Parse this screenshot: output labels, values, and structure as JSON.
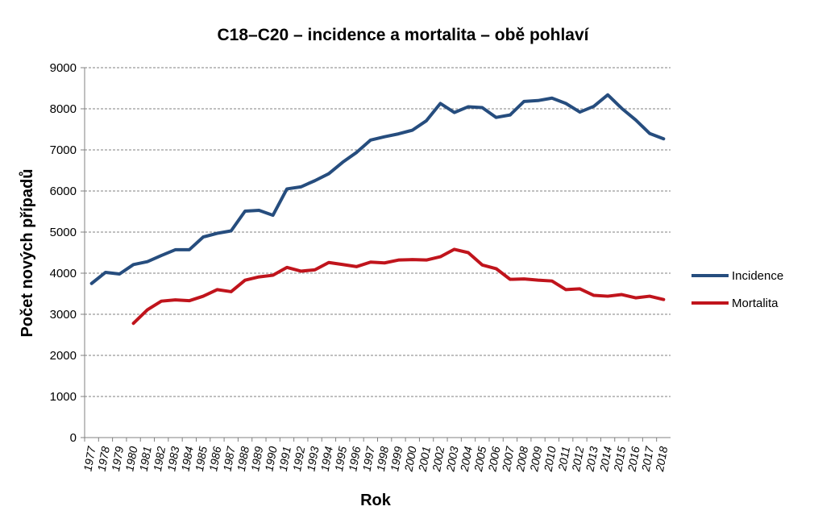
{
  "chart_data": {
    "type": "line",
    "title": "C18–C20 – incidence a mortalita – obě pohlaví",
    "xlabel": "Rok",
    "ylabel": "Počet nových případů",
    "ylim": [
      0,
      9000
    ],
    "yticks": [
      0,
      1000,
      2000,
      3000,
      4000,
      5000,
      6000,
      7000,
      8000,
      9000
    ],
    "grid": true,
    "legend_position": "right",
    "categories": [
      "1977",
      "1978",
      "1979",
      "1980",
      "1981",
      "1982",
      "1983",
      "1984",
      "1985",
      "1986",
      "1987",
      "1988",
      "1989",
      "1990",
      "1991",
      "1992",
      "1993",
      "1994",
      "1995",
      "1996",
      "1997",
      "1998",
      "1999",
      "2000",
      "2001",
      "2002",
      "2003",
      "2004",
      "2005",
      "2006",
      "2007",
      "2008",
      "2009",
      "2010",
      "2011",
      "2012",
      "2013",
      "2014",
      "2015",
      "2016",
      "2017",
      "2018"
    ],
    "series": [
      {
        "name": "Incidence",
        "color": "#264d7e",
        "values": [
          3750,
          4020,
          3980,
          4210,
          4280,
          4430,
          4570,
          4570,
          4880,
          4970,
          5030,
          5510,
          5530,
          5410,
          6050,
          6100,
          6250,
          6420,
          6700,
          6940,
          7240,
          7320,
          7390,
          7480,
          7710,
          8130,
          7910,
          8050,
          8030,
          7790,
          7850,
          8180,
          8200,
          8260,
          8130,
          7920,
          8060,
          8340,
          8010,
          7730,
          7400,
          7270
        ]
      },
      {
        "name": "Mortalita",
        "color": "#c0141c",
        "values": [
          null,
          null,
          null,
          2780,
          3110,
          3320,
          3350,
          3330,
          3440,
          3600,
          3550,
          3830,
          3910,
          3950,
          4140,
          4050,
          4080,
          4260,
          4210,
          4160,
          4270,
          4250,
          4320,
          4330,
          4320,
          4400,
          4580,
          4500,
          4200,
          4110,
          3850,
          3860,
          3830,
          3810,
          3600,
          3620,
          3460,
          3440,
          3480,
          3400,
          3440,
          3360
        ]
      }
    ]
  }
}
